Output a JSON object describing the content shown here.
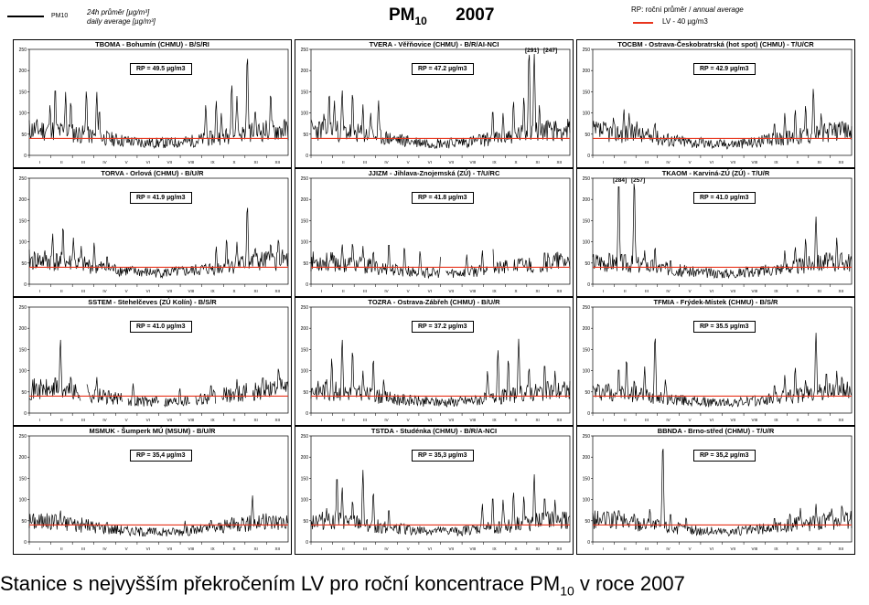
{
  "header": {
    "legend_daily": {
      "symbol": "PM10",
      "label_cz": "24h průměr [µg/m³]",
      "label_en": "daily average [µg/m³]"
    },
    "title_main": "PM",
    "title_sub": "10",
    "title_year": "2007",
    "legend_annual": {
      "rp_label_cz": "RP: roční průměr /",
      "rp_label_en": "annual average",
      "lv_label": "LV - 40 µg/m3"
    }
  },
  "caption": {
    "text_before": "Stanice s nejvyšším překročením LV pro roční koncentrace PM",
    "text_sub": "10",
    "text_after": " v roce 2007"
  },
  "colors": {
    "limit_line": "#e8341c",
    "series": "#000000",
    "frame": "#000000"
  },
  "chart_data": [
    {
      "type": "line",
      "title": "TBOMA - Bohumín (CHMU) - B/S/RI",
      "rp": "RP = 49.5 µg/m3",
      "ylim": [
        0,
        250
      ],
      "yticks": [
        0,
        50,
        100,
        150,
        200,
        250
      ],
      "limit": 40,
      "xticks": [
        "I",
        "II",
        "III",
        "IV",
        "V",
        "VI",
        "VII",
        "VIII",
        "IX",
        "X",
        "XI",
        "XII"
      ],
      "seed": 11,
      "base": 45,
      "peaks": [
        [
          0.08,
          120
        ],
        [
          0.1,
          165
        ],
        [
          0.14,
          150
        ],
        [
          0.16,
          130
        ],
        [
          0.22,
          155
        ],
        [
          0.26,
          150
        ],
        [
          0.27,
          110
        ],
        [
          0.68,
          120
        ],
        [
          0.72,
          130
        ],
        [
          0.74,
          100
        ],
        [
          0.78,
          170
        ],
        [
          0.8,
          140
        ],
        [
          0.84,
          240
        ],
        [
          0.87,
          110
        ],
        [
          0.93,
          150
        ]
      ]
    },
    {
      "type": "line",
      "title": "TVERA - Věřňovice (CHMU) - B/R/AI-NCI",
      "rp": "RP = 47.2 µg/m3",
      "ylim": [
        0,
        250
      ],
      "yticks": [
        0,
        50,
        100,
        150,
        200,
        250
      ],
      "limit": 40,
      "xticks": [
        "I",
        "II",
        "III",
        "IV",
        "V",
        "VI",
        "VII",
        "VIII",
        "IX",
        "X",
        "XI",
        "XII"
      ],
      "annotations": [
        "[291]",
        "[247]"
      ],
      "seed": 23,
      "base": 45,
      "peaks": [
        [
          0.05,
          100
        ],
        [
          0.07,
          150
        ],
        [
          0.09,
          130
        ],
        [
          0.12,
          155
        ],
        [
          0.16,
          150
        ],
        [
          0.2,
          120
        ],
        [
          0.23,
          100
        ],
        [
          0.26,
          130
        ],
        [
          0.7,
          110
        ],
        [
          0.74,
          100
        ],
        [
          0.78,
          130
        ],
        [
          0.82,
          140
        ],
        [
          0.84,
          250
        ],
        [
          0.86,
          240
        ],
        [
          0.88,
          120
        ],
        [
          0.92,
          80
        ]
      ]
    },
    {
      "type": "line",
      "title": "TOCBM - Ostrava-Českobratrská (hot spot) (CHMU) - T/U/CR",
      "rp": "RP = 42.9 µg/m3",
      "ylim": [
        0,
        250
      ],
      "yticks": [
        0,
        50,
        100,
        150,
        200,
        250
      ],
      "limit": 40,
      "xticks": [
        "I",
        "II",
        "III",
        "IV",
        "V",
        "VI",
        "VII",
        "VIII",
        "IX",
        "X",
        "XI",
        "XII"
      ],
      "seed": 37,
      "base": 42,
      "peaks": [
        [
          0.08,
          90
        ],
        [
          0.12,
          110
        ],
        [
          0.14,
          100
        ],
        [
          0.17,
          80
        ],
        [
          0.24,
          80
        ],
        [
          0.7,
          80
        ],
        [
          0.74,
          100
        ],
        [
          0.78,
          110
        ],
        [
          0.82,
          120
        ],
        [
          0.85,
          160
        ],
        [
          0.88,
          100
        ],
        [
          0.95,
          80
        ]
      ]
    },
    {
      "type": "line",
      "title": "TORVA - Orlová (CHMU) - B/U/R",
      "rp": "RP = 41.9 µg/m3",
      "ylim": [
        0,
        250
      ],
      "yticks": [
        0,
        50,
        100,
        150,
        200,
        250
      ],
      "limit": 40,
      "xticks": [
        "I",
        "II",
        "III",
        "IV",
        "V",
        "VI",
        "VII",
        "VIII",
        "IX",
        "X",
        "XI",
        "XII"
      ],
      "seed": 41,
      "base": 42,
      "peaks": [
        [
          0.06,
          80
        ],
        [
          0.09,
          120
        ],
        [
          0.13,
          140
        ],
        [
          0.17,
          110
        ],
        [
          0.2,
          90
        ],
        [
          0.25,
          100
        ],
        [
          0.3,
          70
        ],
        [
          0.72,
          90
        ],
        [
          0.76,
          110
        ],
        [
          0.8,
          100
        ],
        [
          0.84,
          190
        ],
        [
          0.87,
          90
        ],
        [
          0.93,
          100
        ],
        [
          0.96,
          110
        ]
      ]
    },
    {
      "type": "line",
      "title": "JJIZM - Jihlava-Znojemská (ZÚ) - T/U/RC",
      "rp": "RP = 41.8 µg/m3",
      "ylim": [
        0,
        250
      ],
      "yticks": [
        0,
        50,
        100,
        150,
        200,
        250
      ],
      "limit": 40,
      "xticks": [
        "I",
        "II",
        "III",
        "IV",
        "V",
        "VI",
        "VII",
        "VIII",
        "IX",
        "X",
        "XI",
        "XII"
      ],
      "seed": 53,
      "base": 40,
      "gaps": [
        [
          0.5,
          0.52
        ],
        [
          0.68,
          0.7
        ],
        [
          0.76,
          0.78
        ],
        [
          0.86,
          0.88
        ]
      ],
      "peaks": [
        [
          0.12,
          95
        ],
        [
          0.16,
          100
        ],
        [
          0.2,
          90
        ],
        [
          0.24,
          80
        ],
        [
          0.3,
          100
        ],
        [
          0.36,
          90
        ],
        [
          0.42,
          80
        ],
        [
          0.5,
          70
        ],
        [
          0.6,
          70
        ],
        [
          0.66,
          80
        ],
        [
          0.7,
          90
        ],
        [
          0.8,
          60
        ],
        [
          0.9,
          80
        ],
        [
          0.96,
          60
        ]
      ]
    },
    {
      "type": "line",
      "title": "TKAOM - Karviná-ZÚ (ZÚ) - T/U/R",
      "rp": "RP = 41.0 µg/m3",
      "ylim": [
        0,
        250
      ],
      "yticks": [
        0,
        50,
        100,
        150,
        200,
        250
      ],
      "limit": 40,
      "xticks": [
        "I",
        "II",
        "III",
        "IV",
        "V",
        "VI",
        "VII",
        "VIII",
        "IX",
        "X",
        "XI",
        "XII"
      ],
      "annotations": [
        "[284]",
        "[257]"
      ],
      "seed": 67,
      "base": 40,
      "peaks": [
        [
          0.1,
          250
        ],
        [
          0.16,
          250
        ],
        [
          0.2,
          80
        ],
        [
          0.24,
          90
        ],
        [
          0.3,
          60
        ],
        [
          0.74,
          80
        ],
        [
          0.78,
          90
        ],
        [
          0.82,
          110
        ],
        [
          0.86,
          160
        ],
        [
          0.9,
          80
        ],
        [
          0.94,
          110
        ]
      ]
    },
    {
      "type": "line",
      "title": "SSTEM - Stehelčeves (ZÚ Kolín) - B/S/R",
      "rp": "RP = 41.0 µg/m3",
      "ylim": [
        0,
        250
      ],
      "yticks": [
        0,
        50,
        100,
        150,
        200,
        250
      ],
      "limit": 40,
      "xticks": [
        "I",
        "II",
        "III",
        "IV",
        "V",
        "VI",
        "VII",
        "VIII",
        "IX",
        "X",
        "XI",
        "XII"
      ],
      "seed": 71,
      "base": 42,
      "gaps": [
        [
          0.2,
          0.22
        ],
        [
          0.36,
          0.38
        ],
        [
          0.5,
          0.52
        ],
        [
          0.62,
          0.64
        ],
        [
          0.72,
          0.74
        ],
        [
          0.84,
          0.86
        ]
      ],
      "peaks": [
        [
          0.1,
          90
        ],
        [
          0.12,
          175
        ],
        [
          0.16,
          90
        ],
        [
          0.22,
          80
        ],
        [
          0.26,
          85
        ],
        [
          0.4,
          70
        ],
        [
          0.58,
          60
        ],
        [
          0.7,
          70
        ],
        [
          0.8,
          80
        ],
        [
          0.9,
          90
        ],
        [
          0.96,
          110
        ]
      ]
    },
    {
      "type": "line",
      "title": "TOZRA - Ostrava-Zábřeh (CHMU) - B/U/R",
      "rp": "RP = 37.2 µg/m3",
      "ylim": [
        0,
        250
      ],
      "yticks": [
        0,
        50,
        100,
        150,
        200,
        250
      ],
      "limit": 40,
      "xticks": [
        "I",
        "II",
        "III",
        "IV",
        "V",
        "VI",
        "VII",
        "VIII",
        "IX",
        "X",
        "XI",
        "XII"
      ],
      "seed": 83,
      "base": 40,
      "peaks": [
        [
          0.06,
          80
        ],
        [
          0.08,
          130
        ],
        [
          0.12,
          175
        ],
        [
          0.16,
          150
        ],
        [
          0.2,
          100
        ],
        [
          0.24,
          130
        ],
        [
          0.28,
          80
        ],
        [
          0.68,
          100
        ],
        [
          0.72,
          150
        ],
        [
          0.76,
          130
        ],
        [
          0.8,
          175
        ],
        [
          0.84,
          110
        ],
        [
          0.9,
          120
        ],
        [
          0.94,
          100
        ]
      ]
    },
    {
      "type": "line",
      "title": "TFMIA - Frýdek-Místek (CHMU) - B/S/R",
      "rp": "RP = 35.5 µg/m3",
      "ylim": [
        0,
        250
      ],
      "yticks": [
        0,
        50,
        100,
        150,
        200,
        250
      ],
      "limit": 40,
      "xticks": [
        "I",
        "II",
        "III",
        "IV",
        "V",
        "VI",
        "VII",
        "VIII",
        "IX",
        "X",
        "XI",
        "XII"
      ],
      "seed": 97,
      "base": 38,
      "peaks": [
        [
          0.06,
          70
        ],
        [
          0.1,
          110
        ],
        [
          0.13,
          130
        ],
        [
          0.16,
          80
        ],
        [
          0.2,
          110
        ],
        [
          0.24,
          185
        ],
        [
          0.28,
          80
        ],
        [
          0.7,
          70
        ],
        [
          0.74,
          90
        ],
        [
          0.78,
          110
        ],
        [
          0.82,
          80
        ],
        [
          0.86,
          190
        ],
        [
          0.9,
          100
        ],
        [
          0.94,
          100
        ],
        [
          0.96,
          90
        ]
      ]
    },
    {
      "type": "line",
      "title": "MSMUK - Šumperk MÚ (MSUM) - B/U/R",
      "rp": "RP = 35,4 µg/m3",
      "ylim": [
        0,
        250
      ],
      "yticks": [
        0,
        50,
        100,
        150,
        200,
        250
      ],
      "limit": 40,
      "xticks": [
        "I",
        "II",
        "III",
        "IV",
        "V",
        "VI",
        "VII",
        "VIII",
        "IX",
        "X",
        "XI",
        "XII"
      ],
      "seed": 101,
      "base": 36,
      "peaks": [
        [
          0.06,
          60
        ],
        [
          0.1,
          70
        ],
        [
          0.12,
          75
        ],
        [
          0.16,
          60
        ],
        [
          0.22,
          55
        ],
        [
          0.3,
          50
        ],
        [
          0.6,
          50
        ],
        [
          0.7,
          55
        ],
        [
          0.78,
          60
        ],
        [
          0.82,
          60
        ],
        [
          0.86,
          110
        ],
        [
          0.9,
          60
        ]
      ]
    },
    {
      "type": "line",
      "title": "TSTDA - Studénka (CHMU) - B/R/A-NCI",
      "rp": "RP = 35,3 µg/m3",
      "ylim": [
        0,
        250
      ],
      "yticks": [
        0,
        50,
        100,
        150,
        200,
        250
      ],
      "limit": 40,
      "xticks": [
        "I",
        "II",
        "III",
        "IV",
        "V",
        "VI",
        "VII",
        "VIII",
        "IX",
        "X",
        "XI",
        "XII"
      ],
      "seed": 113,
      "base": 38,
      "peaks": [
        [
          0.06,
          80
        ],
        [
          0.1,
          160
        ],
        [
          0.12,
          130
        ],
        [
          0.16,
          100
        ],
        [
          0.2,
          170
        ],
        [
          0.24,
          120
        ],
        [
          0.3,
          80
        ],
        [
          0.66,
          90
        ],
        [
          0.7,
          110
        ],
        [
          0.74,
          100
        ],
        [
          0.78,
          120
        ],
        [
          0.82,
          110
        ],
        [
          0.86,
          160
        ],
        [
          0.9,
          110
        ],
        [
          0.94,
          100
        ]
      ]
    },
    {
      "type": "line",
      "title": "BBNDA - Brno-střed (CHMU) - T/U/R",
      "rp": "RP = 35,2 µg/m3",
      "ylim": [
        0,
        250
      ],
      "yticks": [
        0,
        50,
        100,
        150,
        200,
        250
      ],
      "limit": 40,
      "xticks": [
        "I",
        "II",
        "III",
        "IV",
        "V",
        "VI",
        "VII",
        "VIII",
        "IX",
        "X",
        "XI",
        "XII"
      ],
      "seed": 127,
      "base": 38,
      "peaks": [
        [
          0.06,
          70
        ],
        [
          0.1,
          80
        ],
        [
          0.16,
          70
        ],
        [
          0.22,
          80
        ],
        [
          0.27,
          235
        ],
        [
          0.3,
          70
        ],
        [
          0.36,
          60
        ],
        [
          0.7,
          60
        ],
        [
          0.76,
          70
        ],
        [
          0.8,
          80
        ],
        [
          0.86,
          90
        ],
        [
          0.92,
          80
        ],
        [
          0.96,
          90
        ]
      ]
    }
  ]
}
